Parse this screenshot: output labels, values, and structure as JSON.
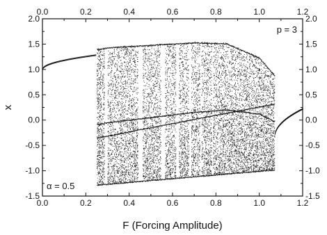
{
  "chart_data": {
    "type": "scatter",
    "xlabel": "F (Forcing Amplitude)",
    "ylabel": "x",
    "xlim": [
      0.0,
      1.2
    ],
    "ylim": [
      -1.5,
      2.0
    ],
    "x_ticks": [
      "0.0",
      "0.2",
      "0.4",
      "0.6",
      "0.8",
      "1.0",
      "1.2"
    ],
    "y_ticks": [
      "-1.5",
      "-1.0",
      "-0.5",
      "0.0",
      "0.5",
      "1.0",
      "1.5",
      "2.0"
    ],
    "grid": false,
    "annotations": {
      "period": "p = 3",
      "alpha": "α = 0.5"
    },
    "series": [
      {
        "kind": "periodic-branch",
        "x_range": [
          0.0,
          0.245
        ],
        "y_range": [
          1.0,
          1.28
        ]
      },
      {
        "kind": "periodic-branch",
        "x_range": [
          1.07,
          1.2
        ],
        "y_range": [
          -0.33,
          0.22
        ]
      },
      {
        "kind": "chaotic-band",
        "x_range": [
          0.25,
          1.07
        ],
        "lower_envelope": [
          [
            0.25,
            -1.28
          ],
          [
            0.6,
            -1.15
          ],
          [
            1.07,
            -0.98
          ]
        ],
        "upper_envelope": [
          [
            0.26,
            1.42
          ],
          [
            0.3,
            1.45
          ],
          [
            0.7,
            1.55
          ],
          [
            0.85,
            1.53
          ],
          [
            1.0,
            1.25
          ],
          [
            1.07,
            0.9
          ]
        ]
      }
    ]
  }
}
